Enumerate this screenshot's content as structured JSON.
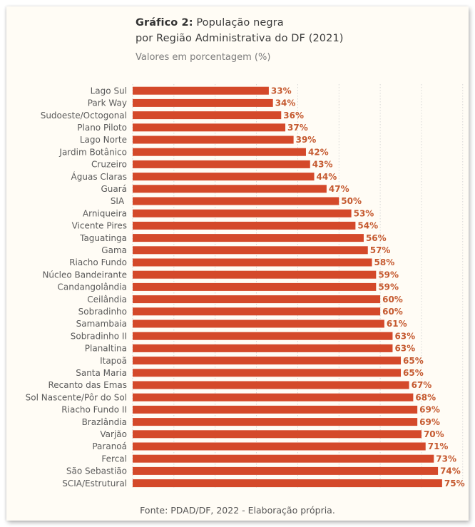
{
  "figure": {
    "title_bold": "Gráfico 2:",
    "title_line1": " População negra",
    "title_line2": "por Região Administrativa do DF (2021)",
    "subtitle": "Valores em porcentagem (%)",
    "source": "Fonte: PDAD/DF, 2022 - Elaboração própria."
  },
  "colors": {
    "bar": "#d4492a",
    "value_label": "#c55a30",
    "background": "#fffcf5",
    "gridline": "#cfcfcf"
  },
  "chart_data": {
    "type": "bar",
    "orientation": "horizontal",
    "title": "Gráfico 2: População negra por Região Administrativa do DF (2021)",
    "subtitle": "Valores em porcentagem (%)",
    "xlabel": "",
    "ylabel": "",
    "xlim": [
      0,
      80
    ],
    "grid": "vertical dotted, every 10",
    "legend": "none",
    "categories": [
      "Lago Sul",
      "Park Way",
      "Sudoeste/Octogonal",
      "Plano Piloto",
      "Lago Norte",
      "Jardim Botânico",
      "Cruzeiro",
      "Águas Claras",
      "Guará",
      "SIA ",
      "Arniqueira",
      "Vicente Pires",
      "Taguatinga",
      "Gama",
      "Riacho Fundo",
      "Núcleo Bandeirante",
      "Candangolândia",
      "Ceilândia",
      "Sobradinho",
      "Samambaia",
      "Sobradinho II",
      "Planaltina",
      "Itapoã",
      "Santa Maria",
      "Recanto das Emas",
      "Sol Nascente/Pôr do Sol",
      "Riacho Fundo II",
      "Brazlândia",
      "Varjão",
      "Paranoá",
      "Fercal",
      "São Sebastião",
      "SCIA/Estrutural"
    ],
    "values": [
      33,
      34,
      36,
      37,
      39,
      42,
      43,
      44,
      47,
      50,
      53,
      54,
      56,
      57,
      58,
      59,
      59,
      60,
      60,
      61,
      63,
      63,
      65,
      65,
      67,
      68,
      69,
      69,
      70,
      71,
      73,
      74,
      75
    ],
    "value_labels": [
      "33%",
      "34%",
      "36%",
      "37%",
      "39%",
      "42%",
      "43%",
      "44%",
      "47%",
      "50%",
      "53%",
      "54%",
      "56%",
      "57%",
      "58%",
      "59%",
      "59%",
      "60%",
      "60%",
      "61%",
      "63%",
      "63%",
      "65%",
      "65%",
      "67%",
      "68%",
      "69%",
      "69%",
      "70%",
      "71%",
      "73%",
      "74%",
      "75%"
    ],
    "source": "Fonte: PDAD/DF, 2022 - Elaboração própria."
  }
}
